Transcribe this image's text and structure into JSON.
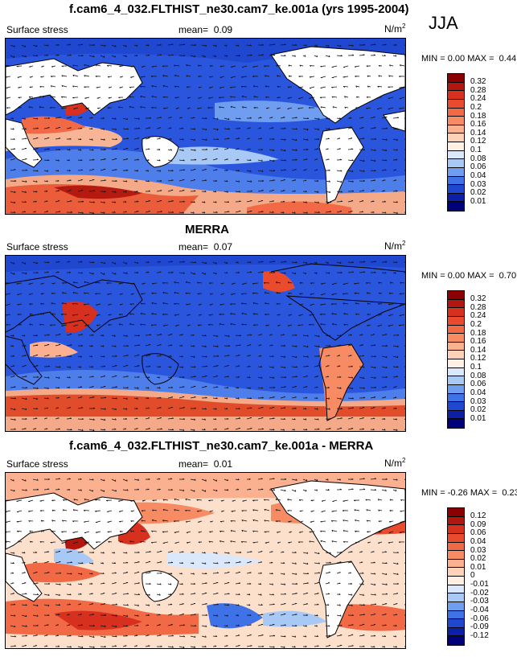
{
  "season": "JJA",
  "panels": [
    {
      "id": "model",
      "title": "f.cam6_4_032.FLTHIST_ne30.cam7_ke.001a (yrs 1995-2004)",
      "variable": "Surface stress",
      "mean_label": "mean=",
      "mean_value": "0.09",
      "units": "N/m",
      "units_sup": "2",
      "min_label": "MIN =",
      "min_value": "0.00",
      "max_label": "MAX =",
      "max_value": "0.44",
      "colorbar_labels": [
        "0.32",
        "0.28",
        "0.24",
        "0.2",
        "0.18",
        "0.16",
        "0.14",
        "0.12",
        "0.1",
        "0.08",
        "0.06",
        "0.04",
        "0.03",
        "0.02",
        "0.01"
      ]
    },
    {
      "id": "obs",
      "title": "MERRA",
      "variable": "Surface stress",
      "mean_label": "mean=",
      "mean_value": "0.07",
      "units": "N/m",
      "units_sup": "2",
      "min_label": "MIN =",
      "min_value": "0.00",
      "max_label": "MAX =",
      "max_value": "0.70",
      "colorbar_labels": [
        "0.32",
        "0.28",
        "0.24",
        "0.2",
        "0.18",
        "0.16",
        "0.14",
        "0.12",
        "0.1",
        "0.08",
        "0.06",
        "0.04",
        "0.03",
        "0.02",
        "0.01"
      ]
    },
    {
      "id": "diff",
      "title": "f.cam6_4_032.FLTHIST_ne30.cam7_ke.001a - MERRA",
      "variable": "Surface stress",
      "mean_label": "mean=",
      "mean_value": "0.01",
      "units": "N/m",
      "units_sup": "2",
      "min_label": "MIN =",
      "min_value": "-0.26",
      "max_label": "MAX =",
      "max_value": "0.23",
      "colorbar_labels": [
        "0.12",
        "0.09",
        "0.06",
        "0.04",
        "0.03",
        "0.02",
        "0.01",
        "0",
        "-0.01",
        "-0.02",
        "-0.03",
        "-0.04",
        "-0.06",
        "-0.09",
        "-0.12"
      ]
    }
  ],
  "colors": {
    "abs_scale": [
      "#8b0000",
      "#b2160f",
      "#d7301f",
      "#ea4b2d",
      "#f26a45",
      "#f78b64",
      "#fbb08f",
      "#fdd2b8",
      "#fff0e3",
      "#dbe8fb",
      "#a8c8f5",
      "#6f9ef0",
      "#3f72e6",
      "#1f47cf",
      "#0b1fa8",
      "#00007a"
    ],
    "diff_scale": [
      "#8b0000",
      "#b2160f",
      "#d7301f",
      "#ea4b2d",
      "#f26a45",
      "#f78b64",
      "#fbb08f",
      "#fdd2b8",
      "#fff0e3",
      "#dbe8fb",
      "#a8c8f5",
      "#6f9ef0",
      "#3f72e6",
      "#1f47cf",
      "#0b1fa8",
      "#00007a"
    ]
  },
  "chart_data": [
    {
      "type": "heatmap",
      "title": "f.cam6_4_032.FLTHIST_ne30.cam7_ke.001a (yrs 1995-2004)",
      "field": "Surface stress",
      "units": "N/m2",
      "season": "JJA",
      "mean": 0.09,
      "min": 0.0,
      "max": 0.44,
      "contour_levels": [
        0.01,
        0.02,
        0.03,
        0.04,
        0.06,
        0.08,
        0.1,
        0.12,
        0.14,
        0.16,
        0.18,
        0.2,
        0.24,
        0.28,
        0.32
      ],
      "xlim": [
        30,
        390
      ],
      "ylim": [
        -90,
        90
      ]
    },
    {
      "type": "heatmap",
      "title": "MERRA",
      "field": "Surface stress",
      "units": "N/m2",
      "season": "JJA",
      "mean": 0.07,
      "min": 0.0,
      "max": 0.7,
      "contour_levels": [
        0.01,
        0.02,
        0.03,
        0.04,
        0.06,
        0.08,
        0.1,
        0.12,
        0.14,
        0.16,
        0.18,
        0.2,
        0.24,
        0.28,
        0.32
      ],
      "xlim": [
        30,
        390
      ],
      "ylim": [
        -90,
        90
      ]
    },
    {
      "type": "heatmap",
      "title": "f.cam6_4_032.FLTHIST_ne30.cam7_ke.001a - MERRA",
      "field": "Surface stress",
      "units": "N/m2",
      "season": "JJA",
      "mean": 0.01,
      "min": -0.26,
      "max": 0.23,
      "contour_levels": [
        -0.12,
        -0.09,
        -0.06,
        -0.04,
        -0.03,
        -0.02,
        -0.01,
        0,
        0.01,
        0.02,
        0.03,
        0.04,
        0.06,
        0.09,
        0.12
      ],
      "xlim": [
        30,
        390
      ],
      "ylim": [
        -90,
        90
      ]
    }
  ]
}
